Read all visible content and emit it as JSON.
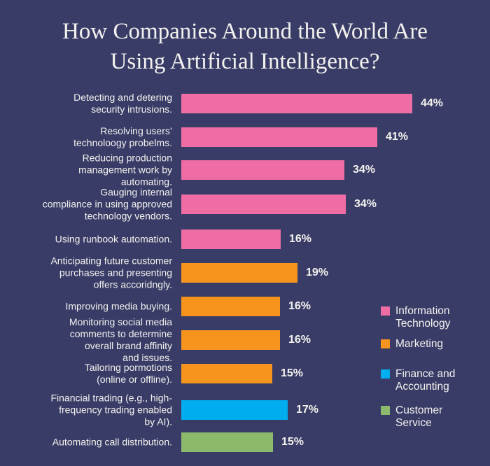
{
  "colors": {
    "background": "#383c66",
    "text": "#f4f2ef"
  },
  "chart_data": {
    "type": "bar",
    "orientation": "horizontal",
    "title": "How Companies Around the World Are Using Artificial Intelligence?",
    "unit": "%",
    "xlim": [
      0,
      50
    ],
    "grid": false,
    "legend_position": "right",
    "bars": [
      {
        "category": "Detecting and detering\nsecurity intrusions.",
        "value": 44,
        "value_label": "44%",
        "group": "Information Technology"
      },
      {
        "category": "Resolving users’\ntechnoloogy probelms.",
        "value": 41,
        "value_label": "41%",
        "group": "Information Technology"
      },
      {
        "category": "Reducing production\nmanagement work by\nautomating.",
        "value": 34,
        "value_label": "34%",
        "group": "Information Technology"
      },
      {
        "category": "Gauging internal\ncompliance in using approved\ntechnology vendors.",
        "value": 34,
        "value_label": "34%",
        "group": "Information Technology"
      },
      {
        "category": "Using runbook automation.",
        "value": 16,
        "value_label": "16%",
        "group": "Information Technology"
      },
      {
        "category": "Anticipating future customer\npurchases and presenting\noffers accoridngly.",
        "value": 19,
        "value_label": "19%",
        "group": "Marketing"
      },
      {
        "category": "Improving media buying.",
        "value": 16,
        "value_label": "16%",
        "group": "Marketing"
      },
      {
        "category": "Monitoring social media\ncomments to determine\noverall brand affinity\nand issues.",
        "value": 16,
        "value_label": "16%",
        "group": "Marketing"
      },
      {
        "category": "Tailoring pormotions\n(online or offline).",
        "value": 15,
        "value_label": "15%",
        "group": "Marketing"
      },
      {
        "category": "Financial trading (e.g., high-\nfrequency trading enabled\nby AI).",
        "value": 17,
        "value_label": "17%",
        "group": "Finance and Accounting"
      },
      {
        "category": "Automating call distribution.",
        "value": 15,
        "value_label": "15%",
        "group": "Customer Service"
      }
    ],
    "legend": [
      {
        "name": "Information Technology",
        "label": "Information\nTechnology",
        "color": "#ee6da4"
      },
      {
        "name": "Marketing",
        "label": "Marketing",
        "color": "#f7941e"
      },
      {
        "name": "Finance and Accounting",
        "label": "Finance and\nAccounting",
        "color": "#00aeef"
      },
      {
        "name": "Customer Service",
        "label": "Customer\nService",
        "color": "#8cba6c"
      }
    ]
  }
}
